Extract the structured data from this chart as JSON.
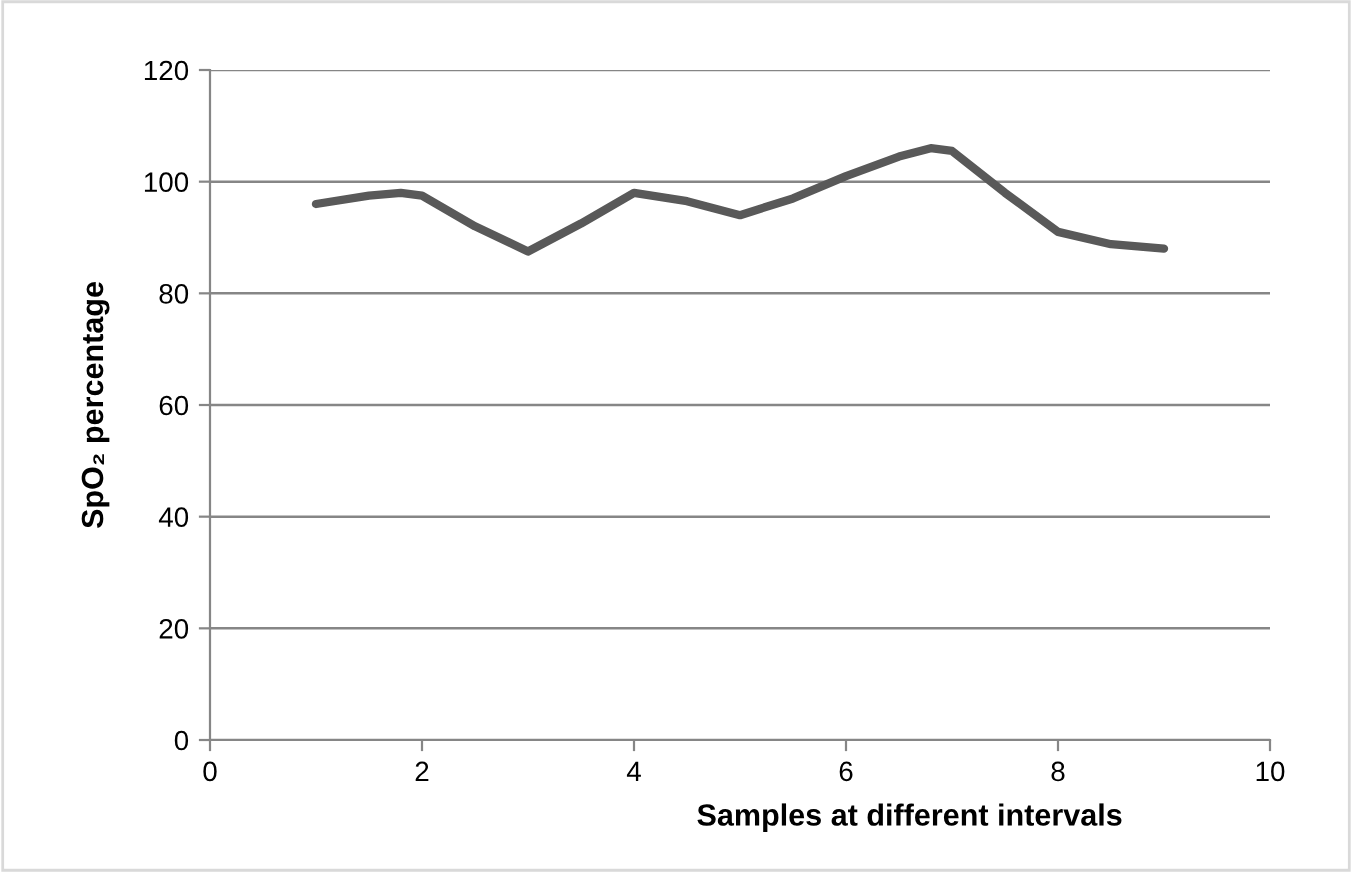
{
  "chart_data": {
    "type": "line",
    "xlabel": "Samples at different intervals",
    "ylabel": "SpO₂ percentage",
    "x": [
      1,
      1.5,
      1.8,
      2,
      2.5,
      3,
      3.5,
      4,
      4.5,
      5,
      5.5,
      6,
      6.5,
      6.8,
      7,
      7.5,
      8,
      8.5,
      9
    ],
    "series": [
      {
        "color": "#595959",
        "values": [
          96,
          97.5,
          98,
          97.5,
          92,
          87.5,
          92.5,
          98,
          96.5,
          94,
          97,
          101,
          104.5,
          106,
          105.5,
          98,
          91,
          88.8,
          88
        ]
      }
    ],
    "xlim": [
      0,
      10
    ],
    "xticks": [
      0,
      2,
      4,
      6,
      8,
      10
    ],
    "ylim": [
      0,
      120
    ],
    "yticks": [
      0,
      20,
      40,
      60,
      80,
      100,
      120
    ],
    "grid": "y",
    "legend": false,
    "marker": "none",
    "line_style": "solid"
  }
}
